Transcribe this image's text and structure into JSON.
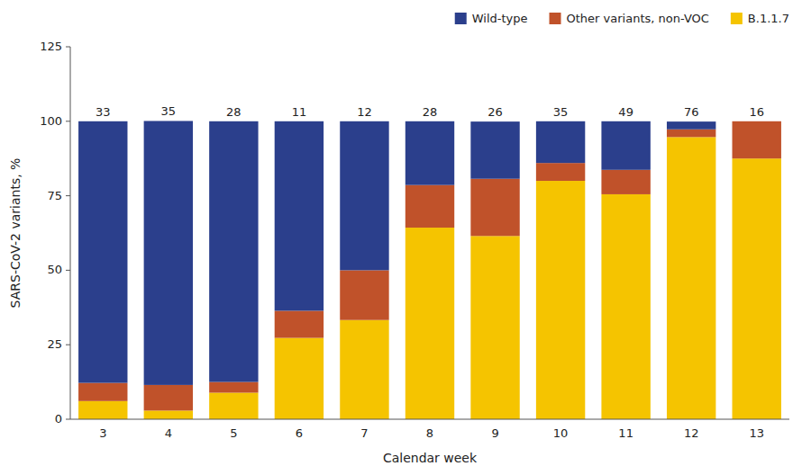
{
  "chart_data": {
    "type": "bar",
    "stacked": true,
    "xlabel": "Calendar week",
    "ylabel": "SARS-CoV-2 variants, %",
    "categories": [
      "3",
      "4",
      "5",
      "6",
      "7",
      "8",
      "9",
      "10",
      "11",
      "12",
      "13"
    ],
    "series": [
      {
        "name": "B.1.1.7",
        "color": "#F5C400",
        "values": [
          6.1,
          2.9,
          8.9,
          27.3,
          33.3,
          64.3,
          61.5,
          80.0,
          75.5,
          94.7,
          87.5
        ]
      },
      {
        "name": "Other variants, non-VOC",
        "color": "#C0522A",
        "values": [
          6.1,
          8.6,
          3.6,
          9.1,
          16.7,
          14.3,
          19.2,
          6.0,
          8.2,
          2.6,
          12.5
        ]
      },
      {
        "name": "Wild-type",
        "color": "#2B3F8C",
        "values": [
          87.8,
          88.6,
          87.5,
          63.6,
          50.0,
          21.4,
          19.2,
          14.0,
          16.3,
          2.6,
          0.0
        ]
      }
    ],
    "annotations": [
      "33",
      "35",
      "28",
      "11",
      "12",
      "28",
      "26",
      "35",
      "49",
      "76",
      "16"
    ],
    "ylim": [
      0,
      125
    ],
    "yticks": [
      0,
      25,
      50,
      75,
      100,
      125
    ],
    "grid": false,
    "legend": "top"
  }
}
